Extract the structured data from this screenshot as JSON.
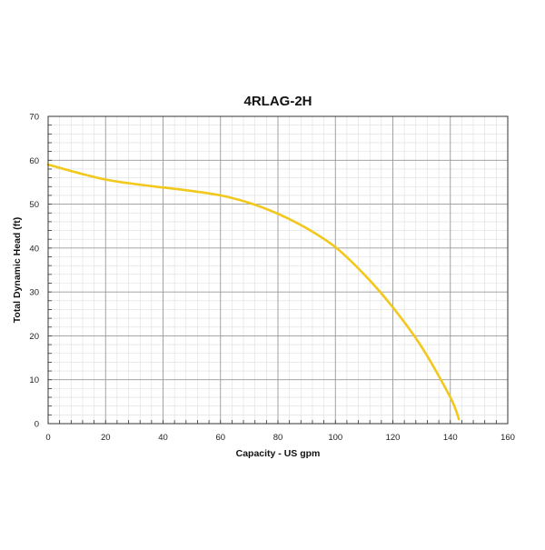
{
  "chart_data": {
    "type": "line",
    "title": "4RLAG-2H",
    "xlabel": "Capacity - US gpm",
    "ylabel": "Total Dynamic Head (ft)",
    "xlim": [
      0,
      160
    ],
    "ylim": [
      0,
      70
    ],
    "x_ticks": [
      "0",
      "20",
      "40",
      "60",
      "80",
      "100",
      "120",
      "140",
      "160"
    ],
    "y_ticks": [
      "0",
      "10",
      "20",
      "30",
      "40",
      "50",
      "60",
      "70"
    ],
    "grid": true,
    "series": [
      {
        "color": "#f2c81c",
        "points": [
          [
            0,
            59
          ],
          [
            10,
            57.2
          ],
          [
            20,
            55.6
          ],
          [
            30,
            54.6
          ],
          [
            40,
            53.8
          ],
          [
            50,
            53.0
          ],
          [
            60,
            52.0
          ],
          [
            70,
            50.3
          ],
          [
            80,
            47.8
          ],
          [
            90,
            44.5
          ],
          [
            100,
            40.2
          ],
          [
            110,
            34.0
          ],
          [
            120,
            26.5
          ],
          [
            130,
            17.5
          ],
          [
            140,
            6.0
          ],
          [
            143,
            1.0
          ]
        ]
      }
    ]
  }
}
